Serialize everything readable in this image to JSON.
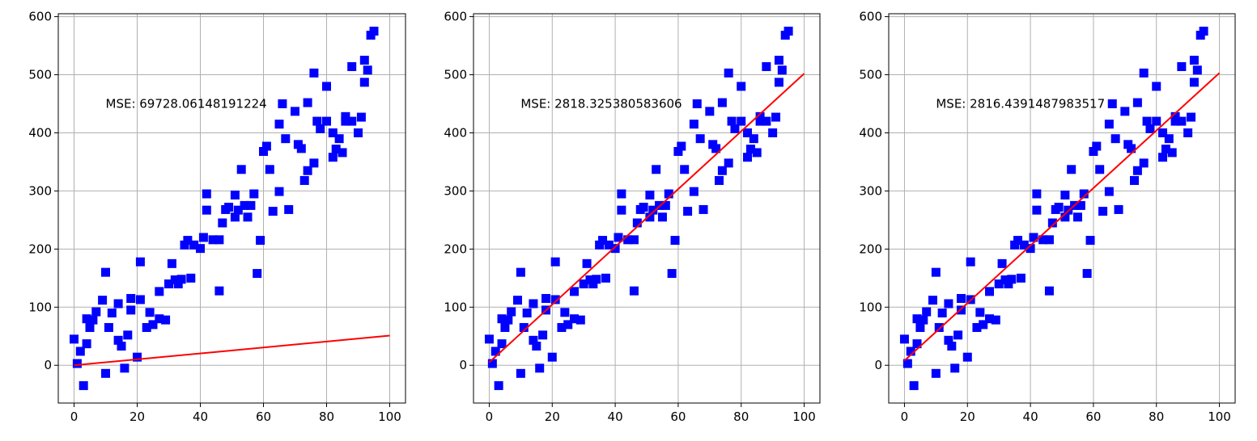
{
  "chart_data": [
    {
      "type": "scatter",
      "annotation": "MSE: 69728.06148191224",
      "xlim": [
        -5,
        105
      ],
      "ylim": [
        -65,
        605
      ],
      "xticks": [
        0,
        20,
        40,
        60,
        80,
        100
      ],
      "yticks": [
        0,
        100,
        200,
        300,
        400,
        500,
        600
      ],
      "grid": true,
      "marker_color": "#0000ff",
      "line_color": "#ff0000",
      "fit_line": {
        "x": [
          0,
          100
        ],
        "y": [
          0,
          51
        ]
      },
      "points": [
        [
          0,
          45
        ],
        [
          1,
          3
        ],
        [
          2,
          24
        ],
        [
          3,
          -35
        ],
        [
          4,
          37
        ],
        [
          4,
          80
        ],
        [
          5,
          65
        ],
        [
          6,
          78
        ],
        [
          7,
          92
        ],
        [
          9,
          112
        ],
        [
          10,
          160
        ],
        [
          10,
          -14
        ],
        [
          11,
          65
        ],
        [
          12,
          90
        ],
        [
          14,
          106
        ],
        [
          14,
          43
        ],
        [
          15,
          33
        ],
        [
          16,
          -5
        ],
        [
          17,
          52
        ],
        [
          18,
          95
        ],
        [
          18,
          115
        ],
        [
          20,
          14
        ],
        [
          21,
          178
        ],
        [
          21,
          113
        ],
        [
          23,
          65
        ],
        [
          24,
          91
        ],
        [
          25,
          70
        ],
        [
          27,
          127
        ],
        [
          27,
          80
        ],
        [
          29,
          78
        ],
        [
          30,
          140
        ],
        [
          31,
          175
        ],
        [
          32,
          147
        ],
        [
          33,
          140
        ],
        [
          34,
          148
        ],
        [
          35,
          207
        ],
        [
          36,
          215
        ],
        [
          37,
          150
        ],
        [
          38,
          207
        ],
        [
          40,
          201
        ],
        [
          41,
          220
        ],
        [
          42,
          295
        ],
        [
          42,
          267
        ],
        [
          44,
          216
        ],
        [
          46,
          216
        ],
        [
          46,
          128
        ],
        [
          47,
          245
        ],
        [
          48,
          268
        ],
        [
          49,
          272
        ],
        [
          51,
          293
        ],
        [
          51,
          255
        ],
        [
          52,
          267
        ],
        [
          53,
          337
        ],
        [
          54,
          275
        ],
        [
          55,
          255
        ],
        [
          56,
          275
        ],
        [
          57,
          295
        ],
        [
          58,
          158
        ],
        [
          59,
          215
        ],
        [
          60,
          368
        ],
        [
          61,
          377
        ],
        [
          62,
          337
        ],
        [
          63,
          265
        ],
        [
          65,
          415
        ],
        [
          65,
          299
        ],
        [
          66,
          450
        ],
        [
          67,
          390
        ],
        [
          68,
          268
        ],
        [
          70,
          437
        ],
        [
          71,
          380
        ],
        [
          72,
          373
        ],
        [
          73,
          318
        ],
        [
          74,
          335
        ],
        [
          74,
          452
        ],
        [
          76,
          503
        ],
        [
          76,
          348
        ],
        [
          77,
          420
        ],
        [
          78,
          407
        ],
        [
          80,
          420
        ],
        [
          80,
          480
        ],
        [
          82,
          400
        ],
        [
          82,
          358
        ],
        [
          83,
          372
        ],
        [
          84,
          390
        ],
        [
          85,
          366
        ],
        [
          86,
          420
        ],
        [
          86,
          428
        ],
        [
          88,
          420
        ],
        [
          88,
          514
        ],
        [
          90,
          400
        ],
        [
          91,
          427
        ],
        [
          92,
          525
        ],
        [
          92,
          487
        ],
        [
          93,
          508
        ],
        [
          94,
          568
        ],
        [
          95,
          575
        ]
      ]
    },
    {
      "type": "scatter",
      "annotation": "MSE: 2818.325380583606",
      "xlim": [
        -5,
        105
      ],
      "ylim": [
        -65,
        605
      ],
      "xticks": [
        0,
        20,
        40,
        60,
        80,
        100
      ],
      "yticks": [
        0,
        100,
        200,
        300,
        400,
        500,
        600
      ],
      "grid": true,
      "marker_color": "#0000ff",
      "line_color": "#ff0000",
      "fit_line": {
        "x": [
          0,
          100
        ],
        "y": [
          5,
          502
        ]
      },
      "points": [
        [
          0,
          45
        ],
        [
          1,
          3
        ],
        [
          2,
          24
        ],
        [
          3,
          -35
        ],
        [
          4,
          37
        ],
        [
          4,
          80
        ],
        [
          5,
          65
        ],
        [
          6,
          78
        ],
        [
          7,
          92
        ],
        [
          9,
          112
        ],
        [
          10,
          160
        ],
        [
          10,
          -14
        ],
        [
          11,
          65
        ],
        [
          12,
          90
        ],
        [
          14,
          106
        ],
        [
          14,
          43
        ],
        [
          15,
          33
        ],
        [
          16,
          -5
        ],
        [
          17,
          52
        ],
        [
          18,
          95
        ],
        [
          18,
          115
        ],
        [
          20,
          14
        ],
        [
          21,
          178
        ],
        [
          21,
          113
        ],
        [
          23,
          65
        ],
        [
          24,
          91
        ],
        [
          25,
          70
        ],
        [
          27,
          127
        ],
        [
          27,
          80
        ],
        [
          29,
          78
        ],
        [
          30,
          140
        ],
        [
          31,
          175
        ],
        [
          32,
          147
        ],
        [
          33,
          140
        ],
        [
          34,
          148
        ],
        [
          35,
          207
        ],
        [
          36,
          215
        ],
        [
          37,
          150
        ],
        [
          38,
          207
        ],
        [
          40,
          201
        ],
        [
          41,
          220
        ],
        [
          42,
          295
        ],
        [
          42,
          267
        ],
        [
          44,
          216
        ],
        [
          46,
          216
        ],
        [
          46,
          128
        ],
        [
          47,
          245
        ],
        [
          48,
          268
        ],
        [
          49,
          272
        ],
        [
          51,
          293
        ],
        [
          51,
          255
        ],
        [
          52,
          267
        ],
        [
          53,
          337
        ],
        [
          54,
          275
        ],
        [
          55,
          255
        ],
        [
          56,
          275
        ],
        [
          57,
          295
        ],
        [
          58,
          158
        ],
        [
          59,
          215
        ],
        [
          60,
          368
        ],
        [
          61,
          377
        ],
        [
          62,
          337
        ],
        [
          63,
          265
        ],
        [
          65,
          415
        ],
        [
          65,
          299
        ],
        [
          66,
          450
        ],
        [
          67,
          390
        ],
        [
          68,
          268
        ],
        [
          70,
          437
        ],
        [
          71,
          380
        ],
        [
          72,
          373
        ],
        [
          73,
          318
        ],
        [
          74,
          335
        ],
        [
          74,
          452
        ],
        [
          76,
          503
        ],
        [
          76,
          348
        ],
        [
          77,
          420
        ],
        [
          78,
          407
        ],
        [
          80,
          420
        ],
        [
          80,
          480
        ],
        [
          82,
          400
        ],
        [
          82,
          358
        ],
        [
          83,
          372
        ],
        [
          84,
          390
        ],
        [
          85,
          366
        ],
        [
          86,
          420
        ],
        [
          86,
          428
        ],
        [
          88,
          420
        ],
        [
          88,
          514
        ],
        [
          90,
          400
        ],
        [
          91,
          427
        ],
        [
          92,
          525
        ],
        [
          92,
          487
        ],
        [
          93,
          508
        ],
        [
          94,
          568
        ],
        [
          95,
          575
        ]
      ]
    },
    {
      "type": "scatter",
      "annotation": "MSE: 2816.4391487983517",
      "xlim": [
        -5,
        105
      ],
      "ylim": [
        -65,
        605
      ],
      "xticks": [
        0,
        20,
        40,
        60,
        80,
        100
      ],
      "yticks": [
        0,
        100,
        200,
        300,
        400,
        500,
        600
      ],
      "grid": true,
      "marker_color": "#0000ff",
      "line_color": "#ff0000",
      "fit_line": {
        "x": [
          0,
          100
        ],
        "y": [
          8,
          503
        ]
      },
      "points": [
        [
          0,
          45
        ],
        [
          1,
          3
        ],
        [
          2,
          24
        ],
        [
          3,
          -35
        ],
        [
          4,
          37
        ],
        [
          4,
          80
        ],
        [
          5,
          65
        ],
        [
          6,
          78
        ],
        [
          7,
          92
        ],
        [
          9,
          112
        ],
        [
          10,
          160
        ],
        [
          10,
          -14
        ],
        [
          11,
          65
        ],
        [
          12,
          90
        ],
        [
          14,
          106
        ],
        [
          14,
          43
        ],
        [
          15,
          33
        ],
        [
          16,
          -5
        ],
        [
          17,
          52
        ],
        [
          18,
          95
        ],
        [
          18,
          115
        ],
        [
          20,
          14
        ],
        [
          21,
          178
        ],
        [
          21,
          113
        ],
        [
          23,
          65
        ],
        [
          24,
          91
        ],
        [
          25,
          70
        ],
        [
          27,
          127
        ],
        [
          27,
          80
        ],
        [
          29,
          78
        ],
        [
          30,
          140
        ],
        [
          31,
          175
        ],
        [
          32,
          147
        ],
        [
          33,
          140
        ],
        [
          34,
          148
        ],
        [
          35,
          207
        ],
        [
          36,
          215
        ],
        [
          37,
          150
        ],
        [
          38,
          207
        ],
        [
          40,
          201
        ],
        [
          41,
          220
        ],
        [
          42,
          295
        ],
        [
          42,
          267
        ],
        [
          44,
          216
        ],
        [
          46,
          216
        ],
        [
          46,
          128
        ],
        [
          47,
          245
        ],
        [
          48,
          268
        ],
        [
          49,
          272
        ],
        [
          51,
          293
        ],
        [
          51,
          255
        ],
        [
          52,
          267
        ],
        [
          53,
          337
        ],
        [
          54,
          275
        ],
        [
          55,
          255
        ],
        [
          56,
          275
        ],
        [
          57,
          295
        ],
        [
          58,
          158
        ],
        [
          59,
          215
        ],
        [
          60,
          368
        ],
        [
          61,
          377
        ],
        [
          62,
          337
        ],
        [
          63,
          265
        ],
        [
          65,
          415
        ],
        [
          65,
          299
        ],
        [
          66,
          450
        ],
        [
          67,
          390
        ],
        [
          68,
          268
        ],
        [
          70,
          437
        ],
        [
          71,
          380
        ],
        [
          72,
          373
        ],
        [
          73,
          318
        ],
        [
          74,
          335
        ],
        [
          74,
          452
        ],
        [
          76,
          503
        ],
        [
          76,
          348
        ],
        [
          77,
          420
        ],
        [
          78,
          407
        ],
        [
          80,
          420
        ],
        [
          80,
          480
        ],
        [
          82,
          400
        ],
        [
          82,
          358
        ],
        [
          83,
          372
        ],
        [
          84,
          390
        ],
        [
          85,
          366
        ],
        [
          86,
          420
        ],
        [
          86,
          428
        ],
        [
          88,
          420
        ],
        [
          88,
          514
        ],
        [
          90,
          400
        ],
        [
          91,
          427
        ],
        [
          92,
          525
        ],
        [
          92,
          487
        ],
        [
          93,
          508
        ],
        [
          94,
          568
        ],
        [
          95,
          575
        ]
      ]
    }
  ]
}
